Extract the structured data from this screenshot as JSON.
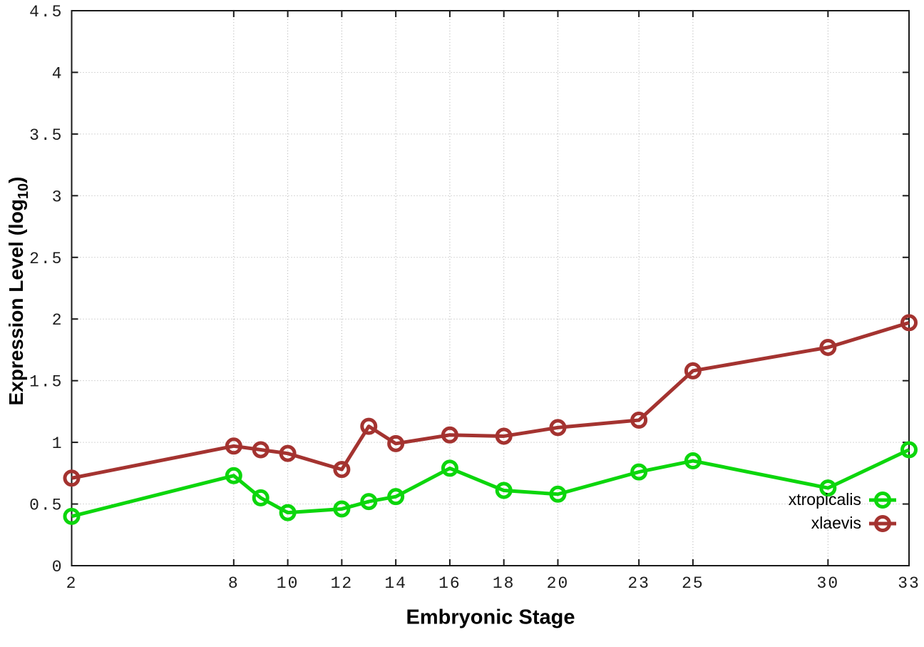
{
  "chart_data": {
    "type": "line",
    "title": "",
    "xlabel": "Embryonic Stage",
    "ylabel": {
      "pre": "Expression Level (log",
      "sub": "10",
      "post": ")"
    },
    "xlim": [
      2,
      33
    ],
    "ylim": [
      0,
      4.5
    ],
    "grid": true,
    "legend_position": "inside-bottom-right",
    "x": [
      2,
      8,
      9,
      10,
      12,
      13,
      14,
      16,
      18,
      20,
      23,
      25,
      30,
      33
    ],
    "series": [
      {
        "name": "xtropicalis",
        "color": "#0cd60c",
        "marker": "open-circle",
        "values": [
          0.4,
          0.73,
          0.55,
          0.43,
          0.46,
          0.52,
          0.56,
          0.79,
          0.61,
          0.58,
          0.76,
          0.85,
          0.63,
          0.94
        ]
      },
      {
        "name": "xlaevis",
        "color": "#a43330",
        "marker": "open-circle",
        "values": [
          0.71,
          0.97,
          0.94,
          0.91,
          0.78,
          1.13,
          0.99,
          1.06,
          1.05,
          1.12,
          1.18,
          1.58,
          1.77,
          1.97
        ]
      }
    ],
    "x_ticks": [
      {
        "v": 2,
        "label": "2"
      },
      {
        "v": 8,
        "label": "8"
      },
      {
        "v": 10,
        "label": "10"
      },
      {
        "v": 12,
        "label": "12"
      },
      {
        "v": 14,
        "label": "14"
      },
      {
        "v": 16,
        "label": "16"
      },
      {
        "v": 18,
        "label": "18"
      },
      {
        "v": 20,
        "label": "20"
      },
      {
        "v": 23,
        "label": "23"
      },
      {
        "v": 25,
        "label": "25"
      },
      {
        "v": 30,
        "label": "30"
      },
      {
        "v": 33,
        "label": "33"
      }
    ],
    "y_ticks": [
      {
        "v": 0,
        "label": "0"
      },
      {
        "v": 0.5,
        "label": "0.5"
      },
      {
        "v": 1,
        "label": "1"
      },
      {
        "v": 1.5,
        "label": "1.5"
      },
      {
        "v": 2,
        "label": "2"
      },
      {
        "v": 2.5,
        "label": "2.5"
      },
      {
        "v": 3,
        "label": "3"
      },
      {
        "v": 3.5,
        "label": "3.5"
      },
      {
        "v": 4,
        "label": "4"
      },
      {
        "v": 4.5,
        "label": "4.5"
      }
    ],
    "style": {
      "border_color": "#1a1a1a",
      "grid_color": "#b0b0b0",
      "tick_label_color": "#1c1c1c",
      "line_width": 5,
      "marker_radius": 9.5,
      "marker_stroke": 5
    }
  }
}
